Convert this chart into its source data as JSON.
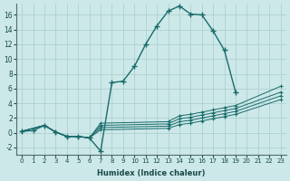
{
  "xlabel": "Humidex (Indice chaleur)",
  "ylabel": "",
  "background_color": "#cce8e8",
  "line_color": "#1a6b6b",
  "xlim": [
    -0.5,
    23.5
  ],
  "ylim": [
    -3,
    17.5
  ],
  "xticks": [
    0,
    1,
    2,
    3,
    4,
    5,
    6,
    7,
    8,
    9,
    10,
    11,
    12,
    13,
    14,
    15,
    16,
    17,
    18,
    19,
    20,
    21,
    22,
    23
  ],
  "yticks": [
    -2,
    0,
    2,
    4,
    6,
    8,
    10,
    12,
    14,
    16
  ],
  "main_curve": {
    "x": [
      0,
      1,
      2,
      3,
      4,
      5,
      6,
      7,
      8,
      9,
      10,
      11,
      12,
      13,
      14,
      15,
      16,
      17,
      18,
      19,
      20,
      21,
      22,
      23
    ],
    "y": [
      0.2,
      0.3,
      1.0,
      0.1,
      -0.5,
      -0.5,
      -0.7,
      -2.5,
      6.8,
      7.0,
      9.0,
      12.0,
      14.5,
      16.5,
      17.2,
      16.1,
      16.0,
      13.8,
      11.2,
      5.5,
      null,
      null,
      null,
      null
    ]
  },
  "flat_lines": [
    {
      "x": [
        0,
        2,
        3,
        4,
        5,
        6,
        7,
        13,
        14,
        15,
        16,
        17,
        18,
        19,
        23
      ],
      "y": [
        0.2,
        1.0,
        0.1,
        -0.5,
        -0.5,
        -0.7,
        1.3,
        1.5,
        2.3,
        2.5,
        2.8,
        3.1,
        3.4,
        3.7,
        6.3
      ]
    },
    {
      "x": [
        0,
        2,
        3,
        4,
        5,
        6,
        7,
        13,
        14,
        15,
        16,
        17,
        18,
        19,
        23
      ],
      "y": [
        0.2,
        1.0,
        0.1,
        -0.5,
        -0.5,
        -0.7,
        1.0,
        1.2,
        1.9,
        2.1,
        2.4,
        2.7,
        3.0,
        3.3,
        5.5
      ]
    },
    {
      "x": [
        0,
        2,
        3,
        4,
        5,
        6,
        7,
        13,
        14,
        15,
        16,
        17,
        18,
        19,
        23
      ],
      "y": [
        0.2,
        1.0,
        0.1,
        -0.5,
        -0.5,
        -0.7,
        0.7,
        0.9,
        1.5,
        1.7,
        2.0,
        2.3,
        2.6,
        2.9,
        5.0
      ]
    },
    {
      "x": [
        0,
        2,
        3,
        4,
        5,
        6,
        7,
        13,
        14,
        15,
        16,
        17,
        18,
        19,
        23
      ],
      "y": [
        0.2,
        1.0,
        0.1,
        -0.5,
        -0.5,
        -0.7,
        0.4,
        0.6,
        1.1,
        1.3,
        1.6,
        1.9,
        2.2,
        2.5,
        4.5
      ]
    }
  ]
}
